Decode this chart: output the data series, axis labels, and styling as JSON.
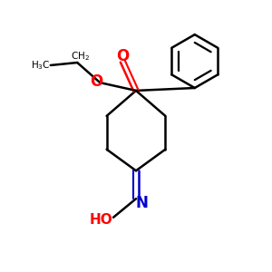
{
  "background_color": "#ffffff",
  "figsize": [
    3.0,
    3.0
  ],
  "dpi": 100,
  "bond_color": "#000000",
  "o_color": "#ff0000",
  "n_color": "#0000cc",
  "line_width": 1.8,
  "xlim": [
    0,
    10
  ],
  "ylim": [
    0,
    10
  ]
}
